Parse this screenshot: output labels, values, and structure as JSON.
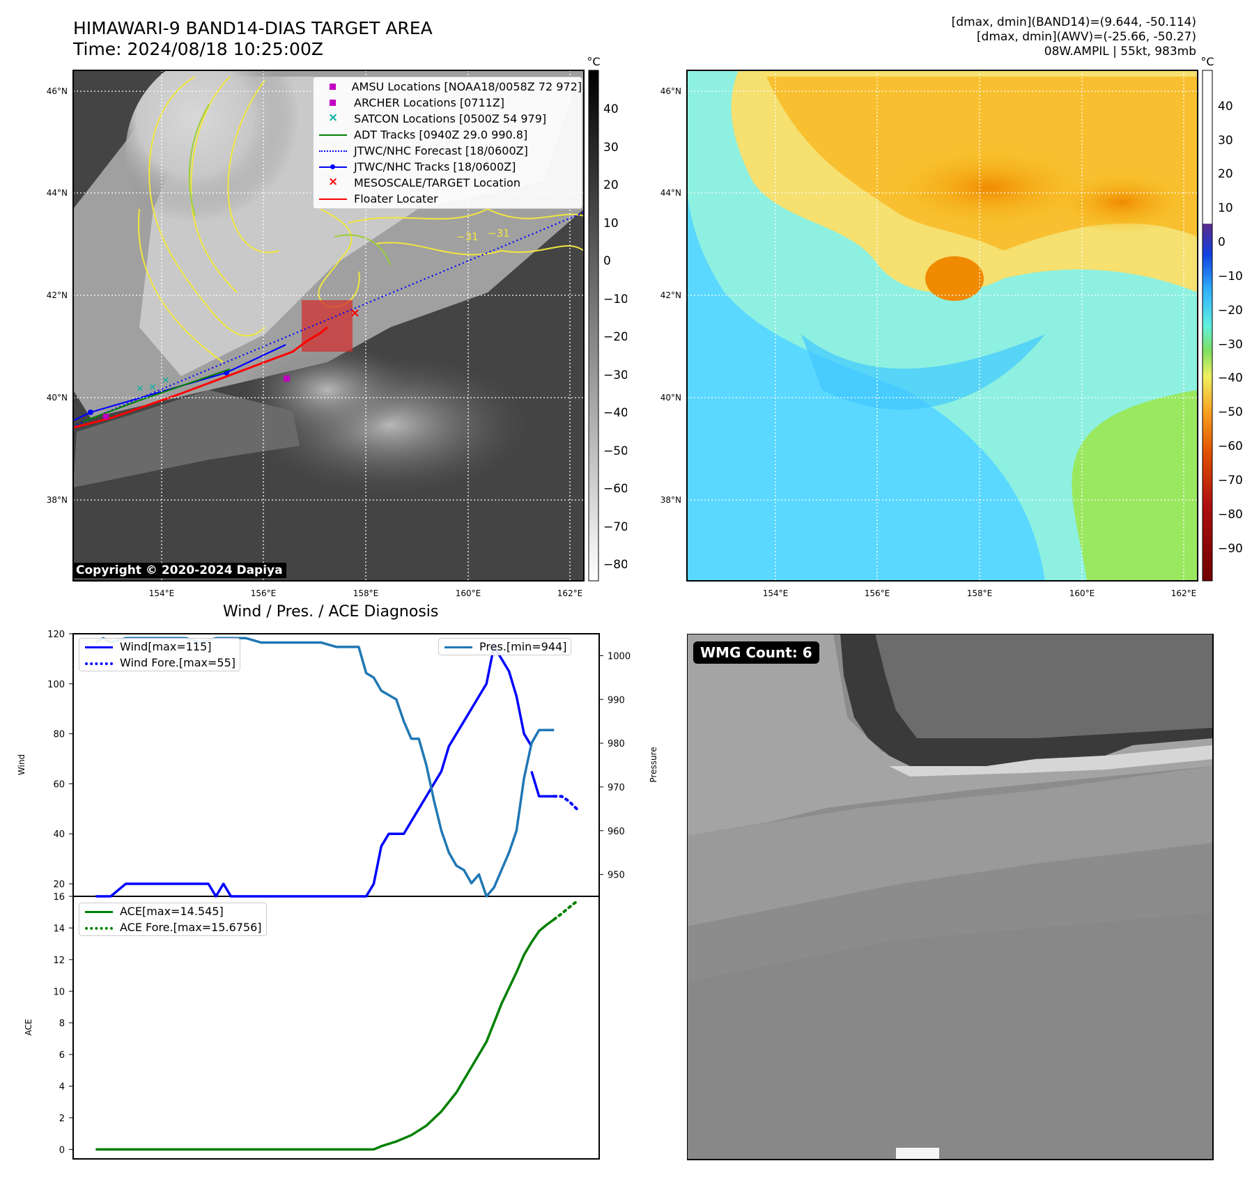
{
  "header": {
    "title_line1": "HIMAWARI-9 BAND14-DIAS TARGET AREA",
    "title_line2": "Time: 2024/08/18 10:25:00Z",
    "info_line1": "[dmax, dmin](BAND14)=(9.644, -50.114)",
    "info_line2": "[dmax, dmin](AWV)=(-25.66, -50.27)",
    "info_line3": "08W.AMPIL | 55kt, 983mb"
  },
  "copyright": "Copyright © 2020-2024 Dapiya",
  "wmg_label": "WMG Count: 6",
  "maps": {
    "lat_ticks": [
      "46°N",
      "44°N",
      "42°N",
      "40°N",
      "38°N"
    ],
    "lon_ticks": [
      "154°E",
      "156°E",
      "158°E",
      "160°E",
      "162°E"
    ],
    "colorbar_unit": "°C",
    "ir_colorbar_ticks": [
      "40",
      "30",
      "20",
      "10",
      "0",
      "−10",
      "−20",
      "−30",
      "−40",
      "−50",
      "−60",
      "−70",
      "−80"
    ],
    "awv_colorbar_ticks": [
      "40",
      "30",
      "20",
      "10",
      "0",
      "−10",
      "−20",
      "−30",
      "−40",
      "−50",
      "−60",
      "−70",
      "−80",
      "−90"
    ],
    "contour_label": "−31",
    "legend": [
      {
        "label": "AMSU Locations [NOAA18/0058Z 72 972]",
        "color": "#c000c0",
        "kind": "square"
      },
      {
        "label": "ARCHER Locations [0711Z]",
        "color": "#c000c0",
        "kind": "square"
      },
      {
        "label": "SATCON Locations [0500Z 54 979]",
        "color": "#00b0a0",
        "kind": "x"
      },
      {
        "label": "ADT Tracks [0940Z 29.0 990.8]",
        "color": "#008000",
        "kind": "line"
      },
      {
        "label": "JTWC/NHC Forecast [18/0600Z]",
        "color": "#0000ff",
        "kind": "dotted"
      },
      {
        "label": "JTWC/NHC Tracks [18/0600Z]",
        "color": "#0000ff",
        "kind": "linedot"
      },
      {
        "label": "MESOSCALE/TARGET Location",
        "color": "#ff0000",
        "kind": "x"
      },
      {
        "label": "Floater Locater",
        "color": "#ff0000",
        "kind": "line"
      }
    ]
  },
  "chart_data": [
    {
      "type": "line",
      "title": "Wind / Pres. / ACE Diagnosis",
      "ylabel": "Wind",
      "y2label": "Pressure",
      "ylim": [
        15,
        120
      ],
      "y2lim": [
        945,
        1005
      ],
      "yticks": [
        "120",
        "100",
        "80",
        "60",
        "40",
        "20"
      ],
      "y2ticks": [
        "1000",
        "990",
        "980",
        "970",
        "960",
        "950"
      ],
      "series": [
        {
          "name": "Wind[max=115]",
          "axis": "left",
          "style": "solid",
          "color": "#0000ff",
          "x": [
            0,
            2,
            4,
            6,
            8,
            10,
            12,
            14,
            15,
            16,
            17,
            18,
            20,
            22,
            24,
            26,
            28,
            30,
            32,
            34,
            36,
            37,
            38,
            39,
            40,
            41,
            42,
            43,
            44,
            45,
            46,
            47,
            48,
            49,
            50,
            51,
            52,
            53,
            54,
            55,
            56,
            57,
            58
          ],
          "y": [
            15,
            15,
            20,
            20,
            20,
            20,
            20,
            20,
            20,
            15,
            20,
            15,
            15,
            15,
            15,
            15,
            15,
            15,
            15,
            15,
            15,
            20,
            35,
            40,
            40,
            40,
            45,
            50,
            55,
            60,
            65,
            75,
            80,
            85,
            90,
            95,
            100,
            115,
            110,
            105,
            95,
            80,
            75
          ]
        },
        {
          "name": "",
          "axis": "left",
          "style": "solid",
          "color": "#0000ff",
          "x": [
            58,
            59,
            60,
            61
          ],
          "y": [
            65,
            55,
            55,
            55
          ]
        },
        {
          "name": "Wind Fore.[max=55]",
          "axis": "left",
          "style": "dotted",
          "color": "#0000ff",
          "x": [
            61,
            62,
            63,
            64
          ],
          "y": [
            55,
            55,
            53,
            50
          ]
        },
        {
          "name": "Pres.[min=944]",
          "axis": "right",
          "style": "solid",
          "color": "#1f77b4",
          "x": [
            0,
            1,
            2,
            4,
            6,
            8,
            10,
            12,
            14,
            16,
            18,
            20,
            22,
            24,
            26,
            28,
            30,
            32,
            33,
            34,
            35,
            36,
            37,
            38,
            39,
            40,
            41,
            42,
            43,
            44,
            45,
            46,
            47,
            48,
            49,
            50,
            51,
            52,
            53,
            54,
            55,
            56,
            57,
            58,
            59,
            60,
            61
          ],
          "y": [
            1003,
            1004,
            1003,
            1004,
            1004,
            1004,
            1004,
            1004,
            1003,
            1004,
            1004,
            1004,
            1003,
            1003,
            1003,
            1003,
            1003,
            1002,
            1002,
            1002,
            1002,
            996,
            995,
            992,
            991,
            990,
            985,
            981,
            981,
            975,
            967,
            960,
            955,
            952,
            951,
            948,
            950,
            945,
            947,
            951,
            955,
            960,
            972,
            980,
            983,
            983,
            983
          ]
        }
      ]
    },
    {
      "type": "line",
      "ylabel": "ACE",
      "ylim": [
        -0.6,
        16
      ],
      "yticks": [
        "16",
        "14",
        "12",
        "10",
        "8",
        "6",
        "4",
        "2",
        "0"
      ],
      "series": [
        {
          "name": "ACE[max=14.545]",
          "style": "solid",
          "color": "#008000",
          "x": [
            0,
            8,
            16,
            24,
            32,
            37,
            38,
            40,
            42,
            44,
            46,
            48,
            50,
            52,
            54,
            56,
            57,
            58,
            59,
            60,
            61
          ],
          "y": [
            0,
            0,
            0,
            0,
            0,
            0,
            0.2,
            0.5,
            0.9,
            1.5,
            2.4,
            3.6,
            5.2,
            6.8,
            9.2,
            11.2,
            12.3,
            13.1,
            13.8,
            14.2,
            14.545
          ]
        },
        {
          "name": "ACE Fore.[max=15.6756]",
          "style": "dotted",
          "color": "#008000",
          "x": [
            61,
            62,
            63,
            64
          ],
          "y": [
            14.545,
            14.9,
            15.3,
            15.6756
          ]
        }
      ]
    }
  ]
}
